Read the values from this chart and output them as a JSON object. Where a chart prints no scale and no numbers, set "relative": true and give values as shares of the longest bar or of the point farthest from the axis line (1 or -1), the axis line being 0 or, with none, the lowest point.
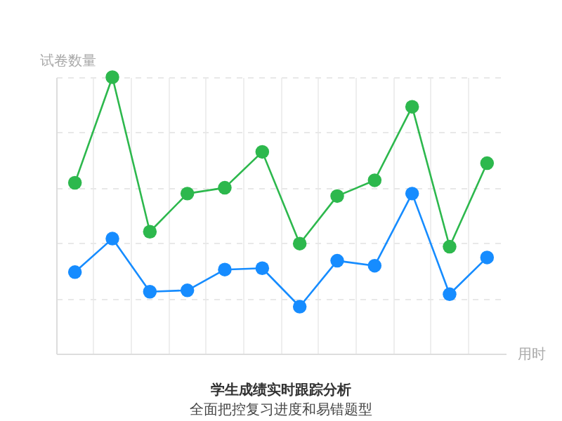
{
  "chart_data": {
    "type": "line",
    "title": "学生成绩实时跟踪分析",
    "subtitle": "全面把控复习进度和易错题型",
    "xlabel": "用时",
    "ylabel": "试卷数量",
    "categories": [
      null,
      null,
      null,
      null,
      null,
      null,
      null,
      null,
      null,
      null,
      null,
      null
    ],
    "relative": true,
    "grid": true,
    "marker": "circle",
    "line_style": "solid",
    "series": [
      {
        "color": "#2db84d",
        "values": [
          0.618,
          1,
          0.441,
          0.579,
          0.6,
          0.73,
          0.398,
          0.57,
          0.627,
          0.893,
          0.387,
          0.689
        ]
      },
      {
        "color": "#168cff",
        "values": [
          0.295,
          0.416,
          0.224,
          0.229,
          0.304,
          0.309,
          0.17,
          0.336,
          0.318,
          0.579,
          0.215,
          0.348
        ]
      }
    ]
  }
}
